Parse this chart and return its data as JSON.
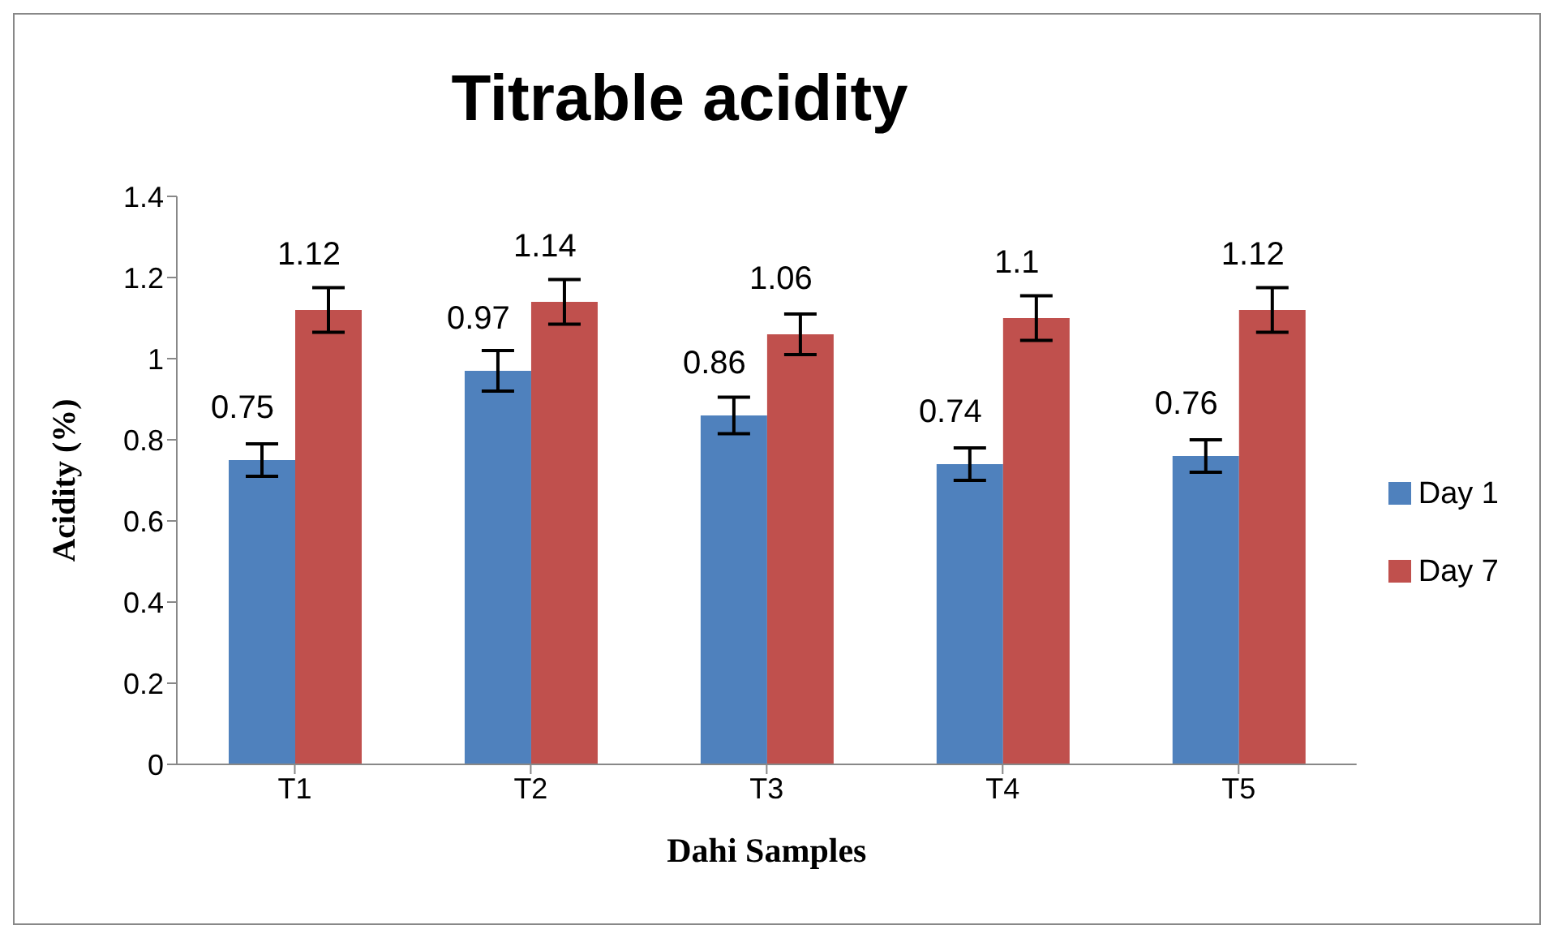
{
  "chart_data": {
    "type": "bar",
    "title": "Titrable acidity",
    "xlabel": "Dahi Samples",
    "ylabel": "Acidity (%)",
    "categories": [
      "T1",
      "T2",
      "T3",
      "T4",
      "T5"
    ],
    "series": [
      {
        "name": "Day 1",
        "color": "#4f81bd",
        "values": [
          0.75,
          0.97,
          0.86,
          0.74,
          0.76
        ],
        "errors": [
          0.04,
          0.05,
          0.045,
          0.04,
          0.04
        ]
      },
      {
        "name": "Day 7",
        "color": "#c0504d",
        "values": [
          1.12,
          1.14,
          1.06,
          1.1,
          1.12
        ],
        "errors": [
          0.055,
          0.055,
          0.05,
          0.055,
          0.055
        ]
      }
    ],
    "ylim": [
      0,
      1.4
    ],
    "yticks": [
      0,
      0.2,
      0.4,
      0.6,
      0.8,
      1,
      1.2,
      1.4
    ],
    "data_labels": true,
    "grid": false,
    "legend": "right"
  }
}
